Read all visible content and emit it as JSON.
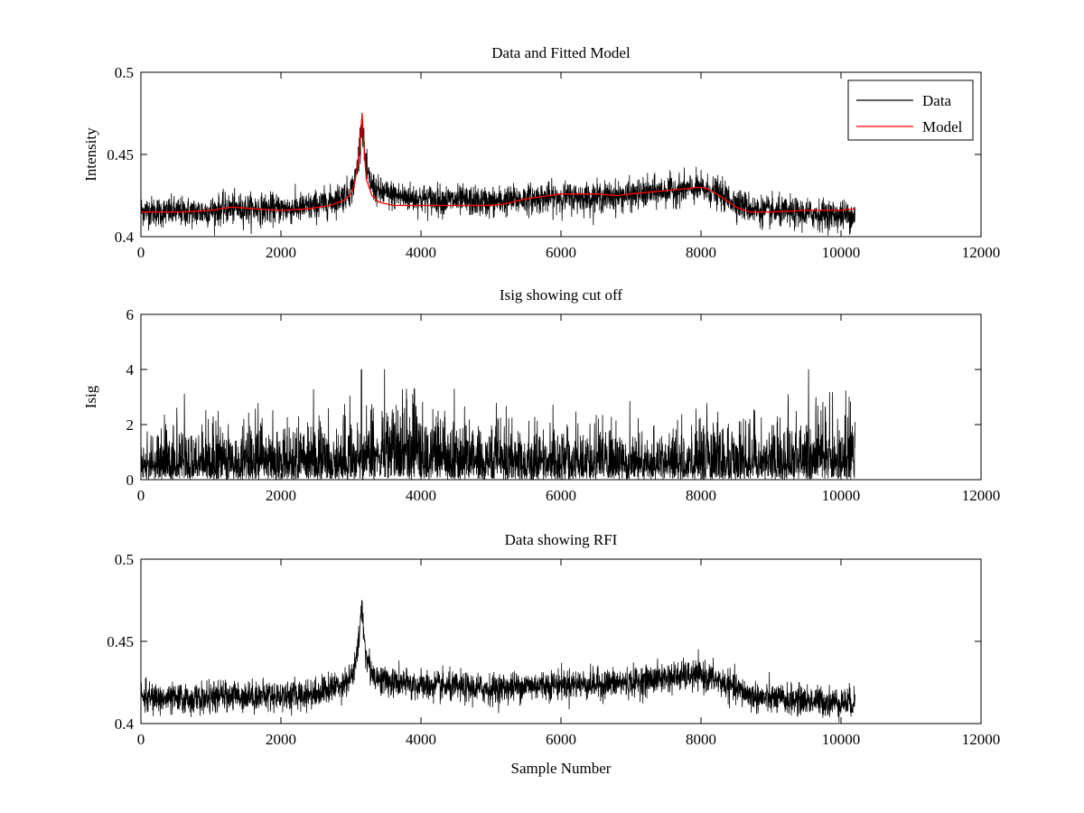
{
  "chart_data": [
    {
      "type": "line",
      "title": "Data and Fitted Model",
      "xlabel": "",
      "ylabel": "Intensity",
      "xlim": [
        0,
        12000
      ],
      "ylim": [
        0.4,
        0.5
      ],
      "xticks": [
        "0",
        "2000",
        "4000",
        "6000",
        "8000",
        "10000",
        "12000"
      ],
      "yticks": [
        "0.4",
        "0.45",
        "0.5"
      ],
      "grid": false,
      "legend": {
        "placement": "top-right",
        "entries": [
          "Data",
          "Model"
        ]
      },
      "series": [
        {
          "name": "Data",
          "color": "#000000",
          "x": [
            0,
            300,
            600,
            900,
            1200,
            1500,
            1800,
            2100,
            2400,
            2700,
            2900,
            3000,
            3050,
            3100,
            3140,
            3160,
            3180,
            3220,
            3300,
            3400,
            3600,
            3800,
            4000,
            4500,
            5000,
            5500,
            6000,
            6500,
            7000,
            7500,
            7800,
            8000,
            8200,
            8400,
            8600,
            8800,
            9000,
            9500,
            10000,
            10200
          ],
          "values": [
            0.416,
            0.415,
            0.415,
            0.415,
            0.417,
            0.417,
            0.417,
            0.417,
            0.418,
            0.421,
            0.425,
            0.428,
            0.433,
            0.445,
            0.465,
            0.47,
            0.458,
            0.44,
            0.431,
            0.427,
            0.425,
            0.424,
            0.423,
            0.422,
            0.421,
            0.423,
            0.424,
            0.424,
            0.425,
            0.428,
            0.429,
            0.429,
            0.427,
            0.423,
            0.419,
            0.416,
            0.415,
            0.414,
            0.413,
            0.413
          ],
          "noise": 0.0045
        },
        {
          "name": "Model",
          "color": "#ff0000",
          "x": [
            0,
            600,
            1000,
            1300,
            1600,
            2000,
            2400,
            2700,
            2900,
            3000,
            3050,
            3100,
            3140,
            3160,
            3180,
            3220,
            3300,
            3400,
            3600,
            3800,
            4000,
            5000,
            5200,
            5500,
            6000,
            6500,
            6800,
            7000,
            7500,
            8000,
            8100,
            8300,
            8500,
            8700,
            9000,
            9500,
            10000,
            10200
          ],
          "values": [
            0.415,
            0.415,
            0.416,
            0.418,
            0.417,
            0.416,
            0.417,
            0.419,
            0.422,
            0.426,
            0.432,
            0.445,
            0.462,
            0.475,
            0.458,
            0.435,
            0.425,
            0.421,
            0.419,
            0.419,
            0.419,
            0.419,
            0.42,
            0.423,
            0.426,
            0.426,
            0.425,
            0.426,
            0.428,
            0.43,
            0.429,
            0.424,
            0.418,
            0.415,
            0.415,
            0.416,
            0.416,
            0.417
          ]
        }
      ]
    },
    {
      "type": "line",
      "title": "Isig showing cut off",
      "xlabel": "",
      "ylabel": "Isig",
      "xlim": [
        0,
        12000
      ],
      "ylim": [
        0,
        6
      ],
      "xticks": [
        "0",
        "2000",
        "4000",
        "6000",
        "8000",
        "10000",
        "12000"
      ],
      "yticks": [
        "0",
        "2",
        "4",
        "6"
      ],
      "grid": false,
      "series": [
        {
          "color": "#000000",
          "x": [
            0,
            1000,
            2000,
            3000,
            3200,
            3600,
            3900,
            4200,
            5000,
            6000,
            7000,
            8000,
            8800,
            9300,
            9800,
            10200
          ],
          "values": [
            0.8,
            0.8,
            0.8,
            0.8,
            1.0,
            1.2,
            1.2,
            1.0,
            0.8,
            0.75,
            0.75,
            0.75,
            0.8,
            0.9,
            1.0,
            1.0
          ],
          "peak_max": 4.0
        }
      ]
    },
    {
      "type": "line",
      "title": "Data showing RFI",
      "xlabel": "Sample Number",
      "ylabel": "",
      "xlim": [
        0,
        12000
      ],
      "ylim": [
        0.4,
        0.5
      ],
      "xticks": [
        "0",
        "2000",
        "4000",
        "6000",
        "8000",
        "10000",
        "12000"
      ],
      "yticks": [
        "0.4",
        "0.45",
        "0.5"
      ],
      "grid": false,
      "series": [
        {
          "color": "#000000",
          "x": [
            0,
            300,
            600,
            900,
            1200,
            1500,
            1800,
            2100,
            2400,
            2700,
            2900,
            3000,
            3050,
            3100,
            3140,
            3160,
            3180,
            3220,
            3300,
            3400,
            3600,
            3800,
            4000,
            4500,
            5000,
            5500,
            6000,
            6500,
            7000,
            7500,
            7800,
            8000,
            8200,
            8400,
            8600,
            8800,
            9000,
            9500,
            10000,
            10200
          ],
          "values": [
            0.416,
            0.415,
            0.415,
            0.415,
            0.417,
            0.417,
            0.417,
            0.417,
            0.418,
            0.421,
            0.425,
            0.428,
            0.433,
            0.445,
            0.465,
            0.47,
            0.458,
            0.44,
            0.431,
            0.427,
            0.425,
            0.424,
            0.423,
            0.422,
            0.421,
            0.423,
            0.424,
            0.424,
            0.425,
            0.428,
            0.429,
            0.429,
            0.427,
            0.423,
            0.419,
            0.416,
            0.415,
            0.414,
            0.413,
            0.413
          ],
          "noise": 0.0045
        }
      ]
    }
  ]
}
